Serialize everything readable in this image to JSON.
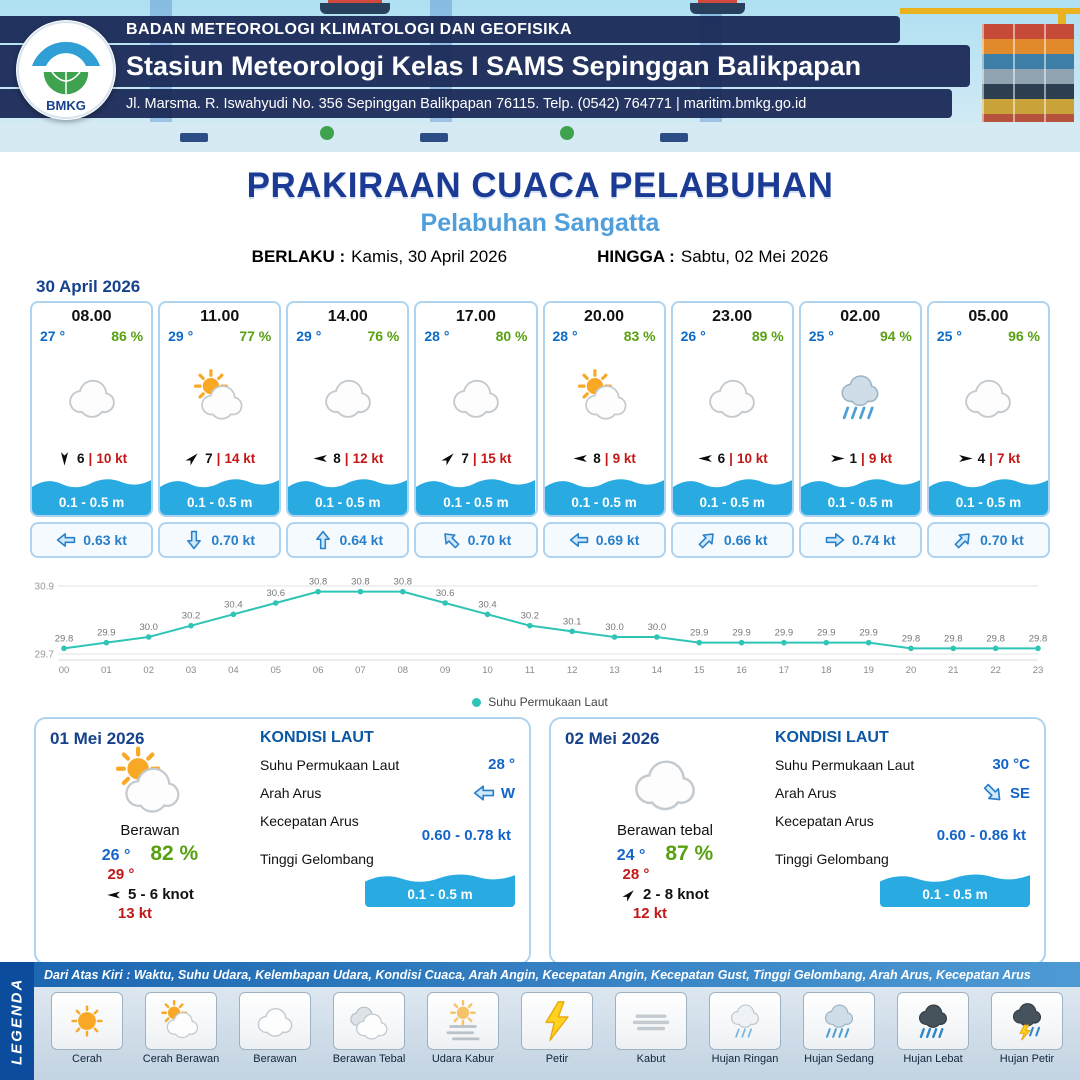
{
  "header": {
    "agency": "BADAN METEOROLOGI KLIMATOLOGI DAN GEOFISIKA",
    "station": "Stasiun Meteorologi Kelas I SAMS Sepinggan Balikpapan",
    "address": "Jl. Marsma. R. Iswahyudi No. 356 Sepinggan Balikpapan 76115. Telp. (0542) 764771 | maritim.bmkg.go.id",
    "logo_text": "BMKG"
  },
  "title": {
    "main": "PRAKIRAAN CUACA PELABUHAN",
    "port": "Pelabuhan Sangatta",
    "valid_label": "BERLAKU :",
    "valid_value": "Kamis, 30 April 2026",
    "until_label": "HINGGA :",
    "until_value": "Sabtu, 02 Mei 2026"
  },
  "forecast_date": "30 April 2026",
  "forecast_cards": [
    {
      "time": "08.00",
      "temp": "27 °",
      "humidity": "86 %",
      "icon": "berawan",
      "wind_deg": 90,
      "wind": "6",
      "gust": "10 kt",
      "wave": "0.1 - 0.5 m",
      "cur_deg": 180,
      "current": "0.63 kt"
    },
    {
      "time": "11.00",
      "temp": "29 °",
      "humidity": "77 %",
      "icon": "cerah-berawan",
      "wind_deg": 315,
      "wind": "7",
      "gust": "14 kt",
      "wave": "0.1 - 0.5 m",
      "cur_deg": 90,
      "current": "0.70 kt"
    },
    {
      "time": "14.00",
      "temp": "29 °",
      "humidity": "76 %",
      "icon": "berawan",
      "wind_deg": 180,
      "wind": "8",
      "gust": "12 kt",
      "wave": "0.1 - 0.5 m",
      "cur_deg": 270,
      "current": "0.64 kt"
    },
    {
      "time": "17.00",
      "temp": "28 °",
      "humidity": "80 %",
      "icon": "berawan",
      "wind_deg": 315,
      "wind": "7",
      "gust": "15 kt",
      "wave": "0.1 - 0.5 m",
      "cur_deg": 225,
      "current": "0.70 kt"
    },
    {
      "time": "20.00",
      "temp": "28 °",
      "humidity": "83 %",
      "icon": "cerah-berawan",
      "wind_deg": 180,
      "wind": "8",
      "gust": "9 kt",
      "wave": "0.1 - 0.5 m",
      "cur_deg": 180,
      "current": "0.69 kt"
    },
    {
      "time": "23.00",
      "temp": "26 °",
      "humidity": "89 %",
      "icon": "berawan",
      "wind_deg": 180,
      "wind": "6",
      "gust": "10 kt",
      "wave": "0.1 - 0.5 m",
      "cur_deg": 315,
      "current": "0.66 kt"
    },
    {
      "time": "02.00",
      "temp": "25 °",
      "humidity": "94 %",
      "icon": "hujan-sedang",
      "wind_deg": 0,
      "wind": "1",
      "gust": "9 kt",
      "wave": "0.1 - 0.5 m",
      "cur_deg": 0,
      "current": "0.74 kt"
    },
    {
      "time": "05.00",
      "temp": "25 °",
      "humidity": "96 %",
      "icon": "berawan",
      "wind_deg": 0,
      "wind": "4",
      "gust": "7 kt",
      "wave": "0.1 - 0.5 m",
      "cur_deg": 315,
      "current": "0.70 kt"
    }
  ],
  "chart_data": {
    "type": "line",
    "series_label": "Suhu Permukaan Laut",
    "x": [
      "00",
      "01",
      "02",
      "03",
      "04",
      "05",
      "06",
      "07",
      "08",
      "09",
      "10",
      "11",
      "12",
      "13",
      "14",
      "15",
      "16",
      "17",
      "18",
      "19",
      "20",
      "21",
      "22",
      "23"
    ],
    "values": [
      29.8,
      29.9,
      30.0,
      30.2,
      30.4,
      30.6,
      30.8,
      30.8,
      30.8,
      30.6,
      30.4,
      30.2,
      30.1,
      30.0,
      30.0,
      29.9,
      29.9,
      29.9,
      29.9,
      29.9,
      29.8,
      29.8,
      29.8,
      29.8
    ],
    "ylim": [
      29.7,
      30.9
    ],
    "line_color": "#2ec4b6",
    "legend_position": "bottom",
    "grid": true
  },
  "daily_labels": {
    "sea_title": "KONDISI LAUT",
    "sst": "Suhu Permukaan Laut",
    "current_dir": "Arah Arus",
    "current_speed": "Kecepatan Arus",
    "wave": "Tinggi Gelombang"
  },
  "daily": [
    {
      "date": "01 Mei 2026",
      "icon": "cerah-berawan",
      "condition": "Berawan",
      "temp_min": "26 °",
      "humidity": "82 %",
      "temp_max": "29 °",
      "wind_deg": 180,
      "wind_range": "5 - 6 knot",
      "gust": "13 kt",
      "sea": {
        "sst": "28 °",
        "current_dir_deg": 180,
        "current_dir_label": "W",
        "current_speed": "0.60  - 0.78 kt",
        "wave": "0.1 - 0.5 m"
      }
    },
    {
      "date": "02 Mei 2026",
      "icon": "berawan",
      "condition": "Berawan tebal",
      "temp_min": "24 °",
      "humidity": "87 %",
      "temp_max": "28 °",
      "wind_deg": 315,
      "wind_range": "2  - 8 knot",
      "gust": "12 kt",
      "sea": {
        "sst": "30 °C",
        "current_dir_deg": 45,
        "current_dir_label": "SE",
        "current_speed": "0.60  - 0.86 kt",
        "wave": "0.1 - 0.5 m"
      }
    }
  ],
  "legend": {
    "side_label": "LEGENDA",
    "note": "Dari Atas Kiri : Waktu, Suhu Udara, Kelembapan Udara, Kondisi Cuaca, Arah Angin, Kecepatan Angin, Kecepatan Gust, Tinggi Gelombang, Arah Arus, Kecepatan Arus",
    "items": [
      {
        "label": "Cerah",
        "icon": "cerah"
      },
      {
        "label": "Cerah Berawan",
        "icon": "cerah-berawan"
      },
      {
        "label": "Berawan",
        "icon": "berawan"
      },
      {
        "label": "Berawan Tebal",
        "icon": "berawan-tebal"
      },
      {
        "label": "Udara Kabur",
        "icon": "udara-kabur"
      },
      {
        "label": "Petir",
        "icon": "petir"
      },
      {
        "label": "Kabut",
        "icon": "kabut"
      },
      {
        "label": "Hujan Ringan",
        "icon": "hujan-ringan"
      },
      {
        "label": "Hujan Sedang",
        "icon": "hujan-sedang"
      },
      {
        "label": "Hujan Lebat",
        "icon": "hujan-lebat"
      },
      {
        "label": "Hujan Petir",
        "icon": "hujan-petir"
      }
    ]
  },
  "colors": {
    "accent_blue": "#1a3a94",
    "light_blue": "#4f9fdc",
    "temp_blue": "#0d6bc8",
    "humidity_green": "#58a010",
    "gust_red": "#c21818",
    "wave_cyan": "#29abe2",
    "line_teal": "#2ec4b6"
  }
}
